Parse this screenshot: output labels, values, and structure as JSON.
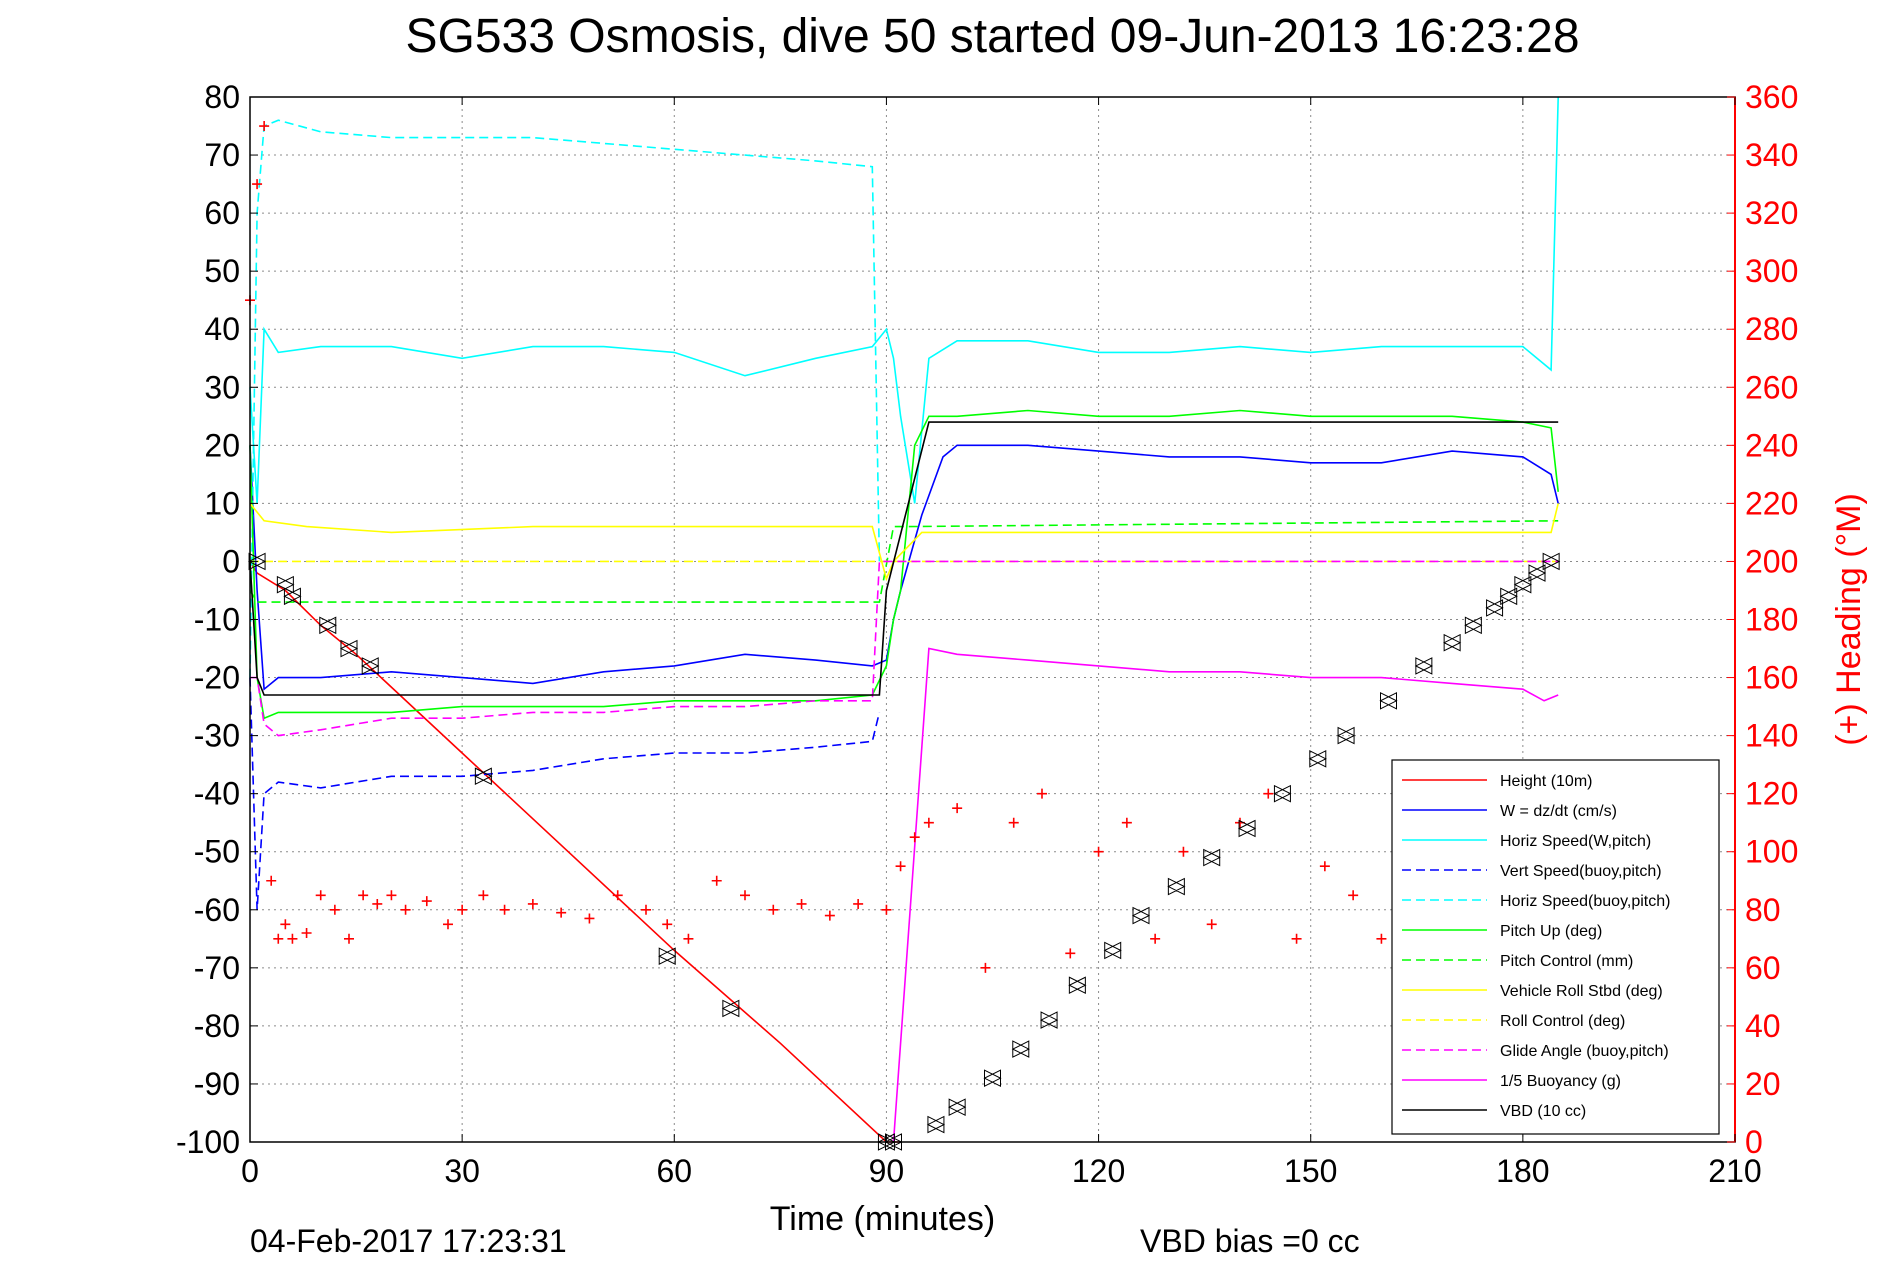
{
  "chart_data": {
    "type": "line",
    "title": "SG533 Osmosis, dive 50 started 09-Jun-2013 16:23:28",
    "xlabel": "Time (minutes)",
    "ylabel": "",
    "y2label": "(+) Heading (°M)",
    "xlim": [
      0,
      210
    ],
    "ylim": [
      -100,
      80
    ],
    "y2lim": [
      0,
      360
    ],
    "x_ticks": [
      "0",
      "30",
      "60",
      "90",
      "120",
      "150",
      "180",
      "210"
    ],
    "y_ticks": [
      "80",
      "70",
      "60",
      "50",
      "40",
      "30",
      "20",
      "10",
      "0",
      "-10",
      "-20",
      "-30",
      "-40",
      "-50",
      "-60",
      "-70",
      "-80",
      "-90",
      "-100"
    ],
    "y2_ticks": [
      "360",
      "340",
      "320",
      "300",
      "280",
      "260",
      "240",
      "220",
      "200",
      "180",
      "160",
      "140",
      "120",
      "100",
      "80",
      "60",
      "40",
      "20",
      "0"
    ],
    "grid": true,
    "legend_position": "bottom-right",
    "footer_left": "04-Feb-2017 17:23:31",
    "footer_right": "VBD bias =0 cc",
    "colors": {
      "red": "#ff0000",
      "blue": "#0000ff",
      "cyan": "#00ffff",
      "green": "#00ff00",
      "yellow": "#ffff00",
      "magenta": "#ff00ff",
      "black": "#000000"
    },
    "series": [
      {
        "name": "Height (10m)",
        "color": "#ff0000",
        "style": "solid",
        "x": [
          0,
          1,
          5,
          10,
          15,
          30,
          45,
          60,
          75,
          90,
          92
        ],
        "y": [
          0,
          -2,
          -5,
          -11,
          -16,
          -33,
          -50,
          -67,
          -83,
          -100,
          -100
        ]
      },
      {
        "name": "W = dz/dt (cm/s)",
        "color": "#0000ff",
        "style": "solid",
        "x": [
          0,
          1,
          2,
          4,
          10,
          20,
          30,
          40,
          50,
          60,
          70,
          80,
          88,
          90,
          91,
          92,
          95,
          98,
          100,
          110,
          120,
          130,
          140,
          150,
          160,
          170,
          180,
          184,
          185
        ],
        "y": [
          20,
          -5,
          -22,
          -20,
          -20,
          -19,
          -20,
          -21,
          -19,
          -18,
          -16,
          -17,
          -18,
          -17,
          -10,
          -5,
          8,
          18,
          20,
          20,
          19,
          18,
          18,
          17,
          17,
          19,
          18,
          15,
          10
        ]
      },
      {
        "name": "Horiz Speed(W,pitch)",
        "color": "#00ffff",
        "style": "solid",
        "x": [
          0,
          1,
          2,
          4,
          10,
          20,
          30,
          40,
          50,
          60,
          70,
          80,
          88,
          90,
          91,
          92,
          94,
          96,
          100,
          110,
          120,
          130,
          140,
          150,
          160,
          170,
          180,
          184,
          185
        ],
        "y": [
          30,
          10,
          40,
          36,
          37,
          37,
          35,
          37,
          37,
          36,
          32,
          35,
          37,
          40,
          35,
          25,
          10,
          35,
          38,
          38,
          36,
          36,
          37,
          36,
          37,
          37,
          37,
          33,
          80
        ]
      },
      {
        "name": "Vert Speed(buoy,pitch)",
        "color": "#0000ff",
        "style": "dashed",
        "x": [
          0,
          1,
          2,
          4,
          10,
          20,
          30,
          40,
          50,
          60,
          70,
          80,
          88,
          89
        ],
        "y": [
          -20,
          -60,
          -40,
          -38,
          -39,
          -37,
          -37,
          -36,
          -34,
          -33,
          -33,
          -32,
          -31,
          -26
        ]
      },
      {
        "name": "Horiz Speed(buoy,pitch)",
        "color": "#00ffff",
        "style": "dashed",
        "x": [
          0,
          1,
          2,
          4,
          10,
          20,
          30,
          40,
          50,
          60,
          70,
          80,
          88,
          89
        ],
        "y": [
          -20,
          60,
          75,
          76,
          74,
          73,
          73,
          73,
          72,
          71,
          70,
          69,
          68,
          0
        ]
      },
      {
        "name": "Pitch Up (deg)",
        "color": "#00ff00",
        "style": "solid",
        "x": [
          0,
          1,
          2,
          4,
          10,
          20,
          30,
          40,
          50,
          60,
          70,
          80,
          88,
          90,
          91,
          92,
          94,
          96,
          100,
          110,
          120,
          130,
          140,
          150,
          160,
          170,
          180,
          184,
          185
        ],
        "y": [
          20,
          -20,
          -27,
          -26,
          -26,
          -26,
          -25,
          -25,
          -25,
          -24,
          -24,
          -24,
          -23,
          -18,
          -10,
          -5,
          20,
          25,
          25,
          26,
          25,
          25,
          26,
          25,
          25,
          25,
          24,
          23,
          12
        ]
      },
      {
        "name": "Pitch Control (mm)",
        "color": "#00ff00",
        "style": "dashed",
        "x": [
          0,
          1,
          2,
          88,
          89,
          91,
          93,
          185
        ],
        "y": [
          -5,
          -7,
          -7,
          -7,
          -7,
          6,
          6,
          7
        ]
      },
      {
        "name": "Vehicle Roll Stbd (deg)",
        "color": "#ffff00",
        "style": "solid",
        "x": [
          0,
          2,
          8,
          20,
          40,
          60,
          80,
          88,
          90,
          91,
          95,
          100,
          120,
          140,
          160,
          180,
          184,
          185
        ],
        "y": [
          10,
          7,
          6,
          5,
          6,
          6,
          6,
          6,
          -3,
          0,
          5,
          5,
          5,
          5,
          5,
          5,
          5,
          10
        ]
      },
      {
        "name": "Roll Control (deg)",
        "color": "#ffff00",
        "style": "dashed",
        "x": [
          0,
          88,
          89,
          185
        ],
        "y": [
          0,
          0,
          0,
          0
        ]
      },
      {
        "name": "Glide Angle (buoy,pitch)",
        "color": "#ff00ff",
        "style": "dashed",
        "x": [
          0,
          1,
          2,
          4,
          10,
          20,
          30,
          40,
          50,
          60,
          70,
          80,
          88,
          89,
          92,
          185
        ],
        "y": [
          -20,
          -20,
          -28,
          -30,
          -29,
          -27,
          -27,
          -26,
          -26,
          -25,
          -25,
          -24,
          -24,
          0,
          0,
          0
        ]
      },
      {
        "name": "1/5 Buoyancy (g)",
        "color": "#ff00ff",
        "style": "solid",
        "x": [
          91,
          96,
          100,
          110,
          120,
          130,
          140,
          150,
          160,
          170,
          180,
          183,
          185
        ],
        "y": [
          -100,
          -15,
          -16,
          -17,
          -18,
          -19,
          -19,
          -20,
          -20,
          -21,
          -22,
          -24,
          -23
        ]
      },
      {
        "name": "VBD (10 cc)",
        "color": "#000000",
        "style": "solid",
        "x": [
          0,
          1,
          2,
          88,
          89,
          90,
          96,
          185
        ],
        "y": [
          0,
          -20,
          -23,
          -23,
          -23,
          -5,
          24,
          24
        ]
      },
      {
        "name": "Heading",
        "color": "#ff0000",
        "style": "plus",
        "axis": "right",
        "x": [
          0,
          1,
          2,
          3,
          4,
          5,
          6,
          8,
          10,
          12,
          14,
          16,
          18,
          20,
          22,
          25,
          28,
          30,
          33,
          36,
          40,
          44,
          48,
          52,
          56,
          59,
          62,
          66,
          70,
          74,
          78,
          82,
          86,
          90,
          92,
          94,
          96,
          100,
          104,
          108,
          112,
          116,
          120,
          124,
          128,
          132,
          136,
          140,
          144,
          148,
          152,
          156,
          160,
          165,
          170,
          175,
          180,
          184
        ],
        "y": [
          290,
          330,
          350,
          90,
          70,
          75,
          70,
          72,
          85,
          80,
          70,
          85,
          82,
          85,
          80,
          83,
          75,
          80,
          85,
          80,
          82,
          79,
          77,
          85,
          80,
          75,
          70,
          90,
          85,
          80,
          82,
          78,
          82,
          80,
          95,
          105,
          110,
          115,
          60,
          110,
          120,
          65,
          100,
          110,
          70,
          100,
          75,
          110,
          120,
          70,
          95,
          85,
          70,
          110,
          120,
          85,
          75,
          60
        ]
      }
    ],
    "markers": {
      "name": "Height markers",
      "x": [
        1,
        5,
        6,
        11,
        14,
        17,
        33,
        59,
        68,
        90,
        91,
        97,
        100,
        105,
        109,
        113,
        117,
        122,
        126,
        131,
        136,
        141,
        146,
        151,
        155,
        161,
        166,
        170,
        173,
        176,
        178,
        180,
        182,
        184
      ],
      "y": [
        0,
        -4,
        -6,
        -11,
        -15,
        -18,
        -37,
        -68,
        -77,
        -100,
        -100,
        -97,
        -94,
        -89,
        -84,
        -79,
        -73,
        -67,
        -61,
        -56,
        -51,
        -46,
        -40,
        -34,
        -30,
        -24,
        -18,
        -14,
        -11,
        -8,
        -6,
        -4,
        -2,
        0
      ]
    }
  }
}
